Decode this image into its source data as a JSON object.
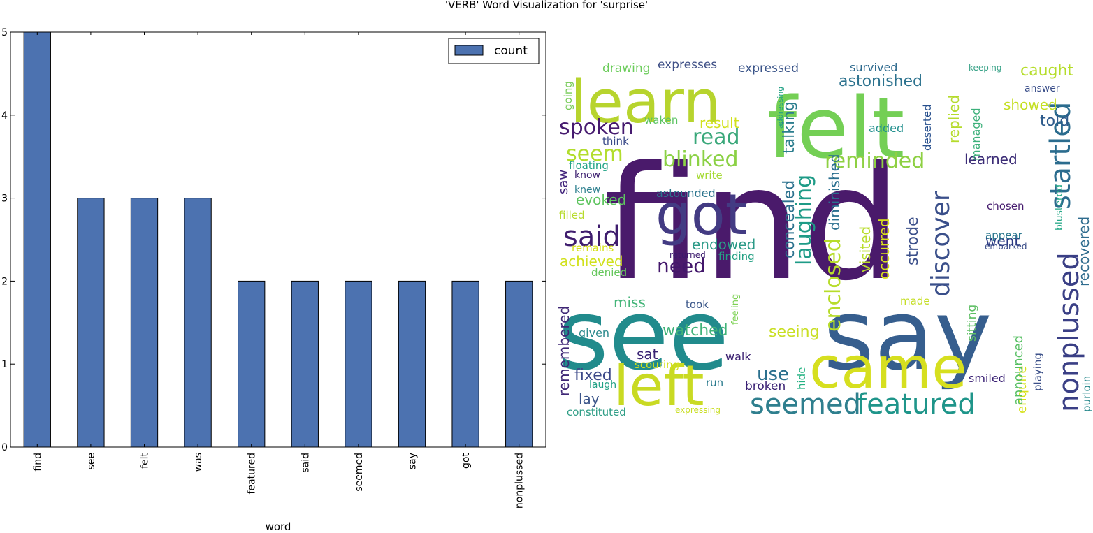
{
  "figure_title": "'VERB' Word Visualization for 'surprise'",
  "chart_data": [
    {
      "type": "bar",
      "title": "'VERB' Word Visualization for 'surprise'",
      "categories": [
        "find",
        "see",
        "felt",
        "was",
        "featured",
        "said",
        "seemed",
        "say",
        "got",
        "nonplussed"
      ],
      "series": [
        {
          "name": "count",
          "values": [
            5,
            3,
            3,
            3,
            2,
            2,
            2,
            2,
            2,
            2
          ]
        }
      ],
      "xlabel": "word",
      "ylabel": "",
      "ylim": [
        0,
        5
      ],
      "yticks": [
        0,
        1,
        2,
        3,
        4,
        5
      ],
      "legend": "top-right",
      "grid": false,
      "color": "#4c72b0"
    },
    {
      "type": "wordcloud",
      "words": [
        "find",
        "see",
        "say",
        "felt",
        "learn",
        "came",
        "left",
        "got",
        "said",
        "startled",
        "nonplussed",
        "discover",
        "seemed",
        "featured",
        "spoken",
        "read",
        "blinked",
        "seem",
        "reminded",
        "laughing",
        "enclosed",
        "concealed",
        "talking",
        "diminished",
        "need",
        "astonished",
        "caught",
        "told",
        "showed",
        "learned",
        "expressed",
        "expresses",
        "drawing",
        "survived",
        "keeping",
        "answer",
        "replied",
        "managed",
        "added",
        "deserted",
        "addressing",
        "waken",
        "think",
        "floating",
        "know",
        "knew",
        "saw",
        "write",
        "astounded",
        "evoked",
        "filled",
        "result",
        "went",
        "chosen",
        "appear",
        "embarked",
        "blustered",
        "recovered",
        "strode",
        "occurred",
        "visited",
        "endowed",
        "achieved",
        "remains",
        "returned",
        "finding",
        "denied",
        "miss",
        "took",
        "feeling",
        "made",
        "sitting",
        "watched",
        "seeing",
        "given",
        "remembered",
        "sat",
        "fixed",
        "walk",
        "use",
        "scouring",
        "hide",
        "laugh",
        "run",
        "broken",
        "lay",
        "constituted",
        "expressing",
        "enquire",
        "announced",
        "playing",
        "purloin",
        "smiled",
        "going"
      ]
    }
  ]
}
